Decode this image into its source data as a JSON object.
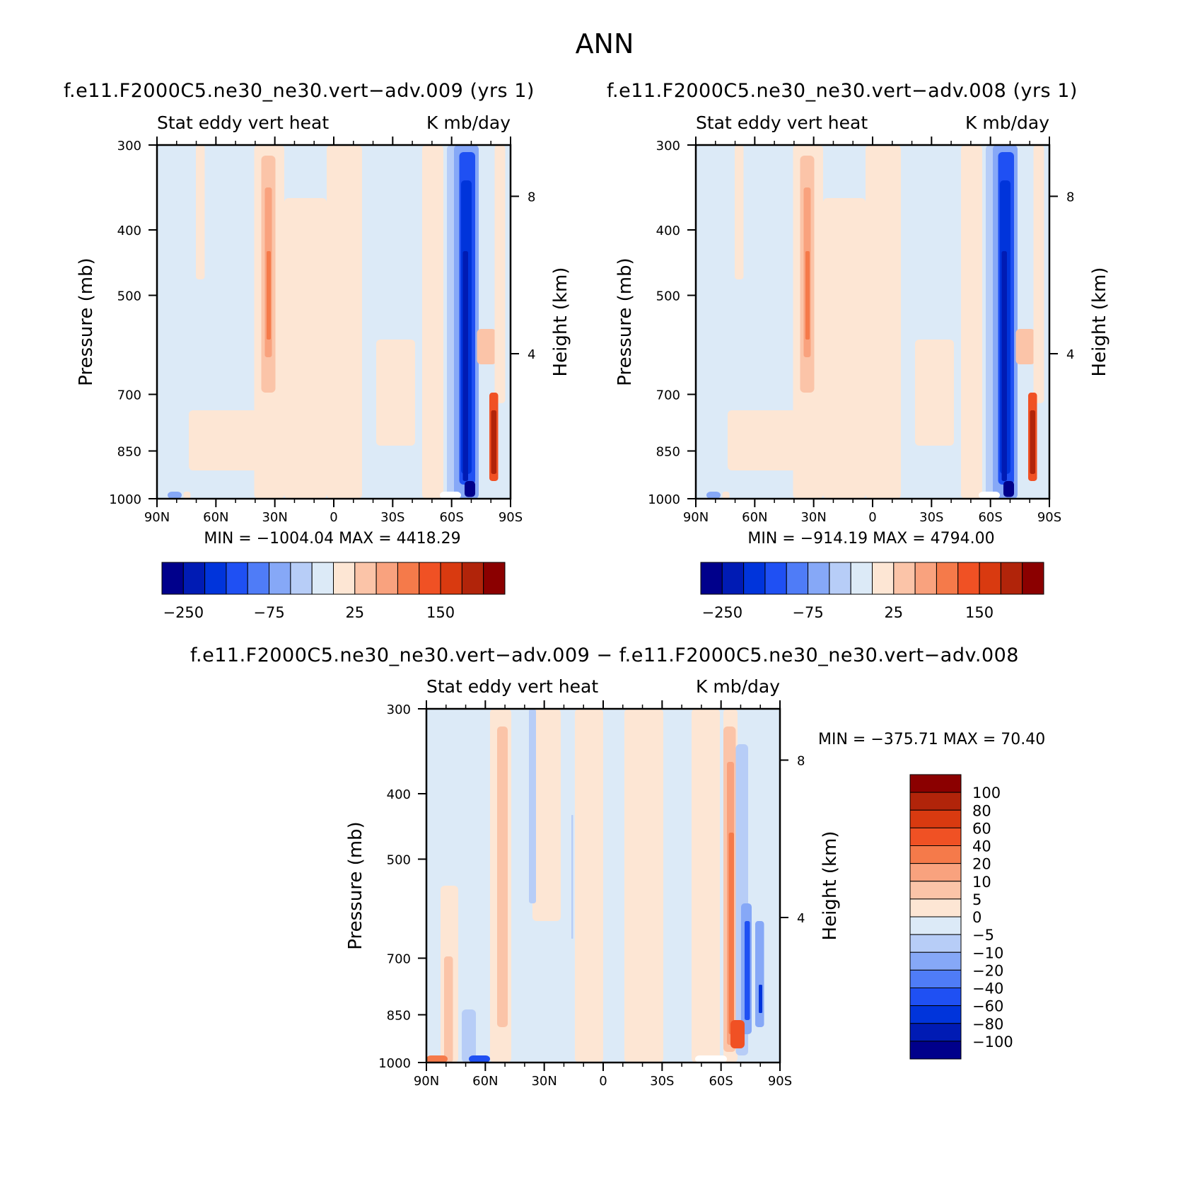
{
  "page_title": "ANN",
  "chart_data": [
    {
      "type": "heatmap",
      "id": "test",
      "title": "f.e11.F2000C5.ne30_ne30.vert−adv.009 (yrs 1)",
      "left_string": "Stat eddy vert heat",
      "right_string": "K mb/day",
      "ylabel": "Pressure (mb)",
      "ylabel_right": "Height (km)",
      "x_ticks": [
        "90N",
        "60N",
        "30N",
        "0",
        "30S",
        "60S",
        "90S"
      ],
      "y_ticks": [
        "300",
        "400",
        "500",
        "700",
        "850",
        "1000"
      ],
      "y_right_ticks": [
        "8",
        "4"
      ],
      "stats": "MIN = −1004.04   MAX = 4418.29",
      "colorbar": {
        "orientation": "horizontal",
        "colors": [
          "#00008b",
          "#001bb4",
          "#0034db",
          "#1f50f3",
          "#4f7cf7",
          "#86a8f7",
          "#b7cdf7",
          "#dceaf7",
          "#fde6d4",
          "#fbc4a8",
          "#f9a27e",
          "#f57a4a",
          "#f05124",
          "#d93a10",
          "#b1240a",
          "#8b0000"
        ],
        "labels": [
          "−250",
          "−75",
          "25",
          "150"
        ]
      }
    },
    {
      "type": "heatmap",
      "id": "control",
      "title": "f.e11.F2000C5.ne30_ne30.vert−adv.008 (yrs 1)",
      "left_string": "Stat eddy vert heat",
      "right_string": "K mb/day",
      "ylabel": "Pressure (mb)",
      "ylabel_right": "Height (km)",
      "x_ticks": [
        "90N",
        "60N",
        "30N",
        "0",
        "30S",
        "60S",
        "90S"
      ],
      "y_ticks": [
        "300",
        "400",
        "500",
        "700",
        "850",
        "1000"
      ],
      "y_right_ticks": [
        "8",
        "4"
      ],
      "stats": "MIN = −914.19   MAX = 4794.00",
      "colorbar": {
        "orientation": "horizontal",
        "colors": [
          "#00008b",
          "#001bb4",
          "#0034db",
          "#1f50f3",
          "#4f7cf7",
          "#86a8f7",
          "#b7cdf7",
          "#dceaf7",
          "#fde6d4",
          "#fbc4a8",
          "#f9a27e",
          "#f57a4a",
          "#f05124",
          "#d93a10",
          "#b1240a",
          "#8b0000"
        ],
        "labels": [
          "−250",
          "−75",
          "25",
          "150"
        ]
      }
    },
    {
      "type": "heatmap",
      "id": "difference",
      "title": "f.e11.F2000C5.ne30_ne30.vert−adv.009 − f.e11.F2000C5.ne30_ne30.vert−adv.008",
      "left_string": "Stat eddy vert heat",
      "right_string": "K mb/day",
      "ylabel": "Pressure (mb)",
      "ylabel_right": "Height (km)",
      "x_ticks": [
        "90N",
        "60N",
        "30N",
        "0",
        "30S",
        "60S",
        "90S"
      ],
      "y_ticks": [
        "300",
        "400",
        "500",
        "700",
        "850",
        "1000"
      ],
      "y_right_ticks": [
        "8",
        "4"
      ],
      "stats": "MIN = −375.71   MAX =  70.40",
      "colorbar": {
        "orientation": "vertical",
        "colors": [
          "#8b0000",
          "#b1240a",
          "#d93a10",
          "#f05124",
          "#f57a4a",
          "#f9a27e",
          "#fbc4a8",
          "#fde6d4",
          "#dceaf7",
          "#b7cdf7",
          "#86a8f7",
          "#4f7cf7",
          "#1f50f3",
          "#0034db",
          "#001bb4",
          "#00008b"
        ],
        "labels": [
          "100",
          "80",
          "60",
          "40",
          "20",
          "10",
          "5",
          "0",
          "−5",
          "−10",
          "−20",
          "−40",
          "−60",
          "−80",
          "−100"
        ]
      }
    }
  ]
}
